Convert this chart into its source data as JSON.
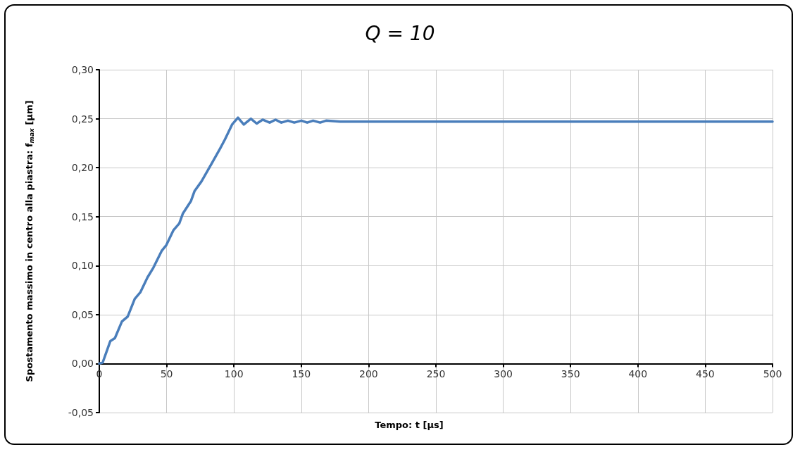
{
  "chart_data": {
    "type": "line",
    "title": "Q = 10",
    "xlabel": "Tempo: t [μs]",
    "ylabel": "Spostamento massimo in centro alla piastra: f$_{max}$ [μm]",
    "xlim": [
      0,
      500
    ],
    "xticks": [
      0,
      50,
      100,
      150,
      200,
      250,
      300,
      350,
      400,
      450,
      500
    ],
    "ylim": [
      -0.05,
      0.3
    ],
    "yticks": [
      {
        "value": -0.05,
        "label": "-0,05"
      },
      {
        "value": 0,
        "label": "0,00"
      },
      {
        "value": 0.05,
        "label": "0,05"
      },
      {
        "value": 0.1,
        "label": "0,10"
      },
      {
        "value": 0.15,
        "label": "0,15"
      },
      {
        "value": 0.2,
        "label": "0,20"
      },
      {
        "value": 0.25,
        "label": "0,25"
      },
      {
        "value": 0.3,
        "label": "0,30"
      }
    ],
    "grid": true,
    "marker": "none",
    "line_style": "solid",
    "series": [
      {
        "color": "#4a7ebb",
        "x": [
          0,
          2.5,
          8.2,
          11.6,
          16.8,
          21.1,
          26.3,
          30.6,
          35.8,
          40.2,
          46.3,
          49.8,
          55.0,
          59.4,
          62.0,
          68.1,
          70.7,
          75.9,
          83.8,
          89.9,
          93.4,
          98.6,
          103.0,
          107.3,
          112.6,
          116.9,
          121.3,
          126.5,
          130.9,
          135.2,
          140.1,
          144.8,
          150.1,
          154.4,
          158.8,
          164.0,
          168.4,
          178.9,
          500
        ],
        "values": [
          0,
          0.001,
          0.023,
          0.026,
          0.043,
          0.048,
          0.066,
          0.073,
          0.088,
          0.098,
          0.115,
          0.121,
          0.136,
          0.143,
          0.153,
          0.166,
          0.176,
          0.186,
          0.205,
          0.22,
          0.229,
          0.244,
          0.251,
          0.244,
          0.25,
          0.245,
          0.249,
          0.246,
          0.249,
          0.246,
          0.248,
          0.246,
          0.248,
          0.246,
          0.248,
          0.246,
          0.248,
          0.247,
          0.247
        ]
      }
    ]
  }
}
